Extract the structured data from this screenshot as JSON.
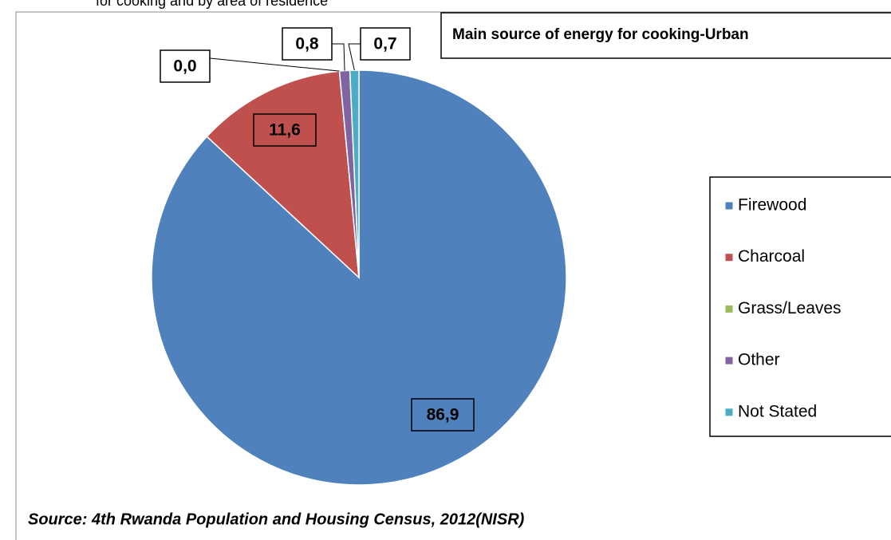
{
  "caption": "for cooking and by area of residence",
  "chart_data": {
    "type": "pie",
    "title": "Main source of energy for cooking-Urban",
    "categories": [
      "Firewood",
      "Charcoal",
      "Grass/Leaves",
      "Other",
      "Not Stated"
    ],
    "values": [
      86.9,
      11.6,
      0.0,
      0.8,
      0.7
    ],
    "value_labels": [
      "86,9",
      "11,6",
      "0,0",
      "0,8",
      "0,7"
    ],
    "colors": [
      "#4f81bd",
      "#c0504d",
      "#9bbb59",
      "#8064a2",
      "#4bacc6"
    ],
    "legend": "right",
    "source": "Source: 4th Rwanda Population and Housing Census, 2012(NISR)"
  }
}
